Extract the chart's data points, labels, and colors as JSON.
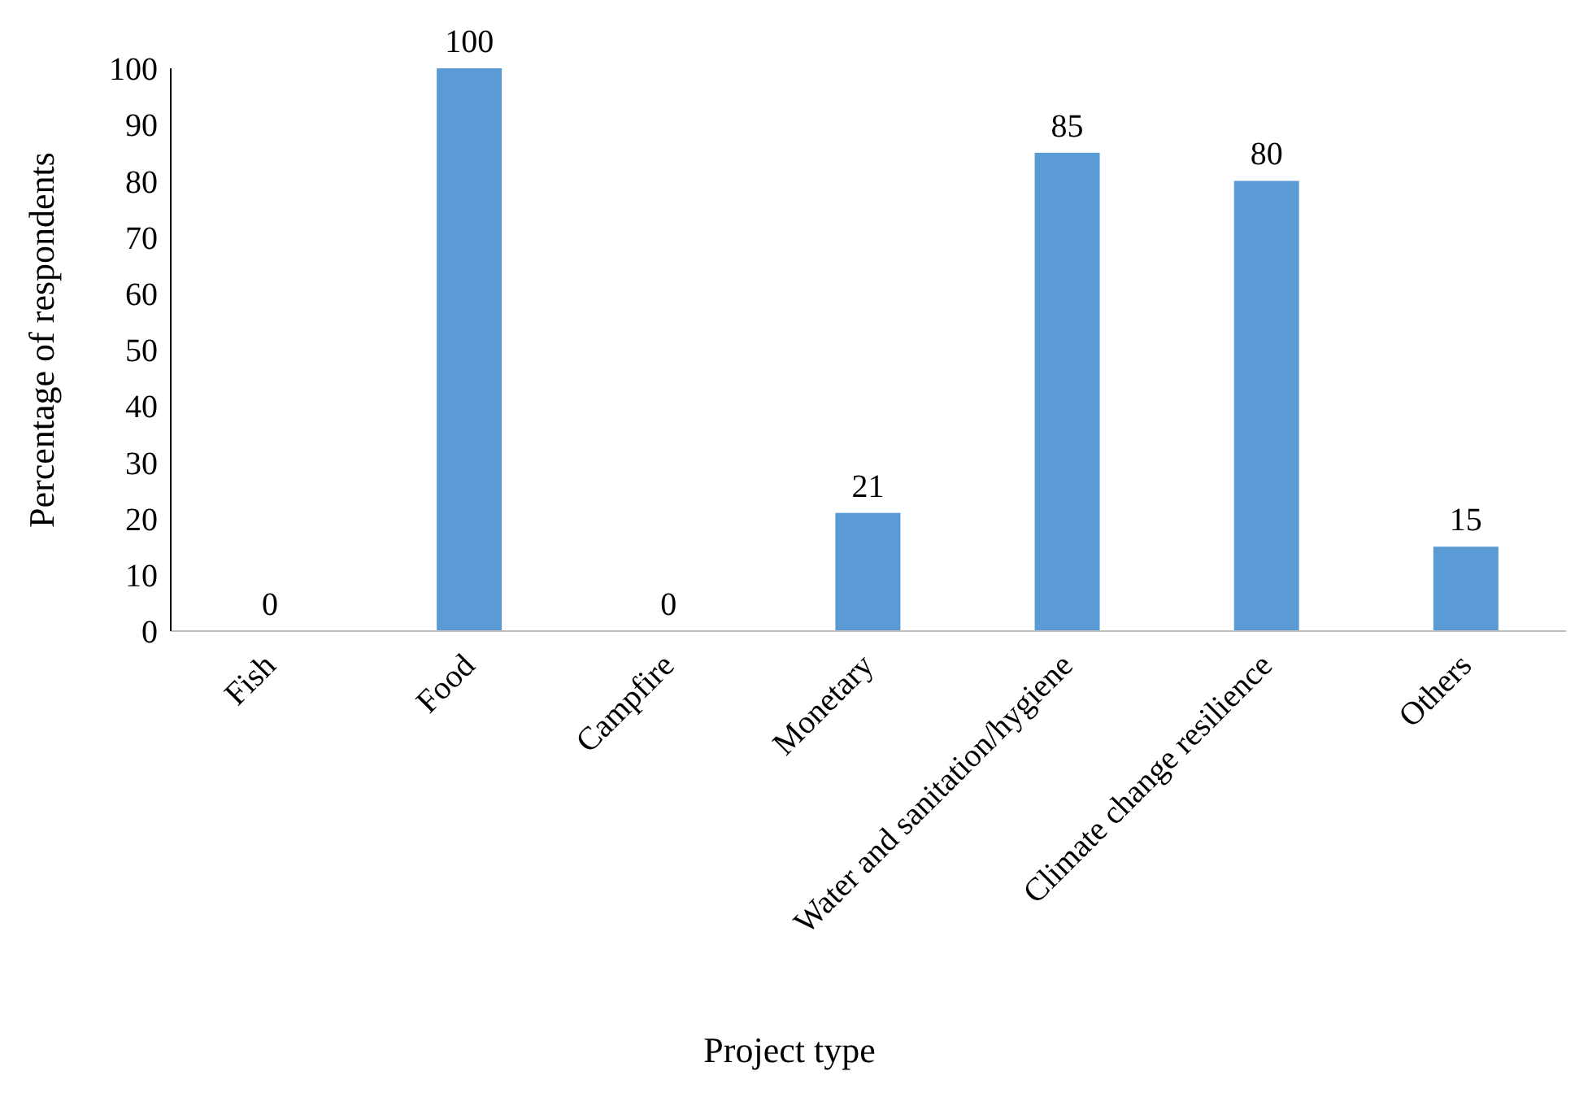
{
  "chart_data": {
    "type": "bar",
    "xlabel": "Project type",
    "ylabel": "Percentage of respondents",
    "categories": [
      "Fish",
      "Food",
      "Campfire",
      "Monetary",
      "Water and sanitation/hygiene",
      "Climate change resilience",
      "Others"
    ],
    "values": [
      0,
      100,
      0,
      21,
      85,
      80,
      15
    ],
    "color": "#5b9bd5",
    "ylim": [
      0,
      100
    ],
    "yticks": [
      0,
      10,
      20,
      30,
      40,
      50,
      60,
      70,
      80,
      90,
      100
    ],
    "data_labels": true,
    "grid": false,
    "legend": false
  }
}
